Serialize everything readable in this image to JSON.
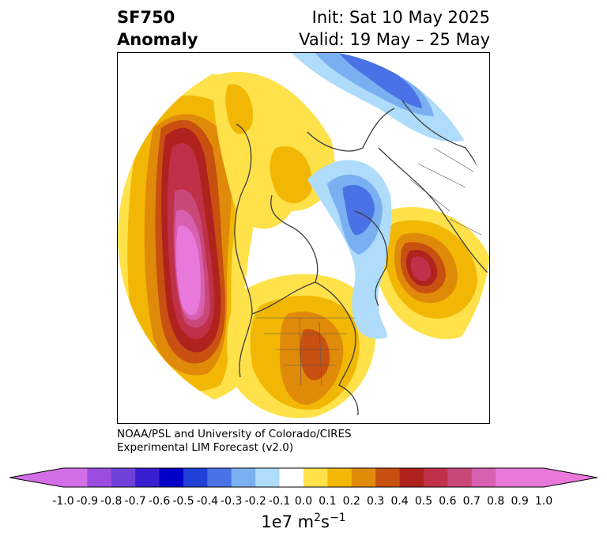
{
  "header": {
    "title_line1": "SF750",
    "title_line2": "Anomaly",
    "init_label": "Init: Sat 10 May 2025",
    "valid_label": "Valid: 19 May – 25 May"
  },
  "credits": {
    "line1": "NOAA/PSL and University of Colorado/CIRES",
    "line2": "Experimental LIM Forecast (v2.0)"
  },
  "colorbar": {
    "ticks": [
      "-1.0",
      "-0.9",
      "-0.8",
      "-0.7",
      "-0.6",
      "-0.5",
      "-0.4",
      "-0.3",
      "-0.2",
      "-0.1",
      "0.0",
      "0.1",
      "0.2",
      "0.3",
      "0.4",
      "0.5",
      "0.6",
      "0.7",
      "0.8",
      "0.9",
      "1.0"
    ],
    "colors": [
      "#9b4de0",
      "#7040d8",
      "#3a1fd0",
      "#0000c8",
      "#2040d8",
      "#4a72e6",
      "#7ab0f2",
      "#aedcfa",
      "#ffffff",
      "#ffe14a",
      "#f2b705",
      "#e08a0a",
      "#c85010",
      "#b0221e",
      "#c03048",
      "#c84878",
      "#d860b0",
      "#e878da"
    ],
    "under_color": "#d46ee6",
    "over_color": "#e878da",
    "units_base": "1e7 m",
    "units_exp1": "2",
    "units_mid": "s",
    "units_exp2": "−1"
  }
}
